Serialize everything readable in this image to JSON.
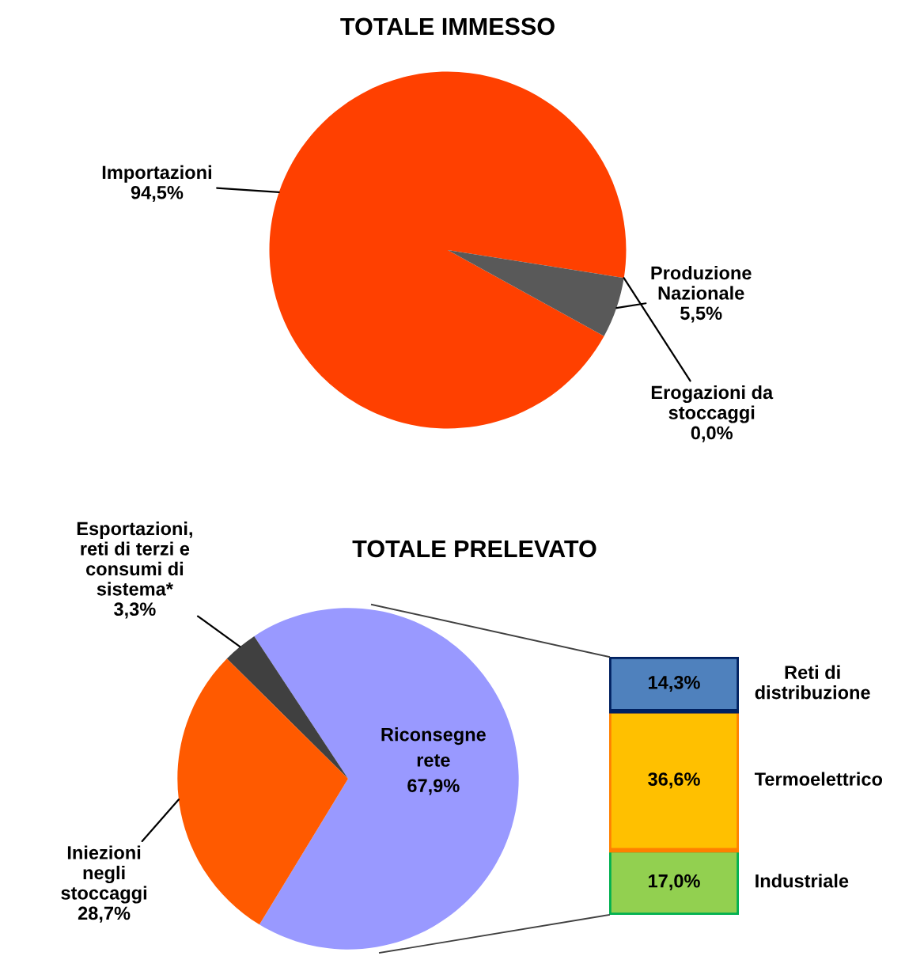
{
  "chart_data": [
    {
      "type": "pie",
      "title": "TOTALE IMMESSO",
      "categories": [
        "Importazioni",
        "Produzione Nazionale",
        "Erogazioni da stoccaggi"
      ],
      "values": [
        94.5,
        5.5,
        0.0
      ],
      "colors": [
        "#ff4000",
        "#595959",
        "#808080"
      ],
      "value_labels": [
        "94,5%",
        "5,5%",
        "0,0%"
      ],
      "legend": false
    },
    {
      "type": "pie",
      "title": "TOTALE PRELEVATO",
      "categories": [
        "Riconsegne rete",
        "Esportazioni, reti di terzi e consumi di sistema*",
        "Iniezioni negli stoccaggi"
      ],
      "values": [
        67.9,
        3.3,
        28.7
      ],
      "colors": [
        "#9999ff",
        "#404040",
        "#ff5a00"
      ],
      "value_labels": [
        "67,9%",
        "3,3%",
        "28,7%"
      ],
      "legend": false
    },
    {
      "type": "bar",
      "stacked": true,
      "categories": [
        null
      ],
      "legend": false,
      "series": [
        {
          "name": "Industriale",
          "color": "#92d050",
          "values": [
            17.0
          ],
          "value_labels": [
            "17,0%"
          ]
        },
        {
          "name": "Termoelettrico",
          "color": "#ffc000",
          "values": [
            36.6
          ],
          "value_labels": [
            "36,6%"
          ]
        },
        {
          "name": "Reti di distribuzione",
          "color": "#4f81bd",
          "values": [
            14.3
          ],
          "value_labels": [
            "14,3%"
          ]
        }
      ]
    }
  ]
}
